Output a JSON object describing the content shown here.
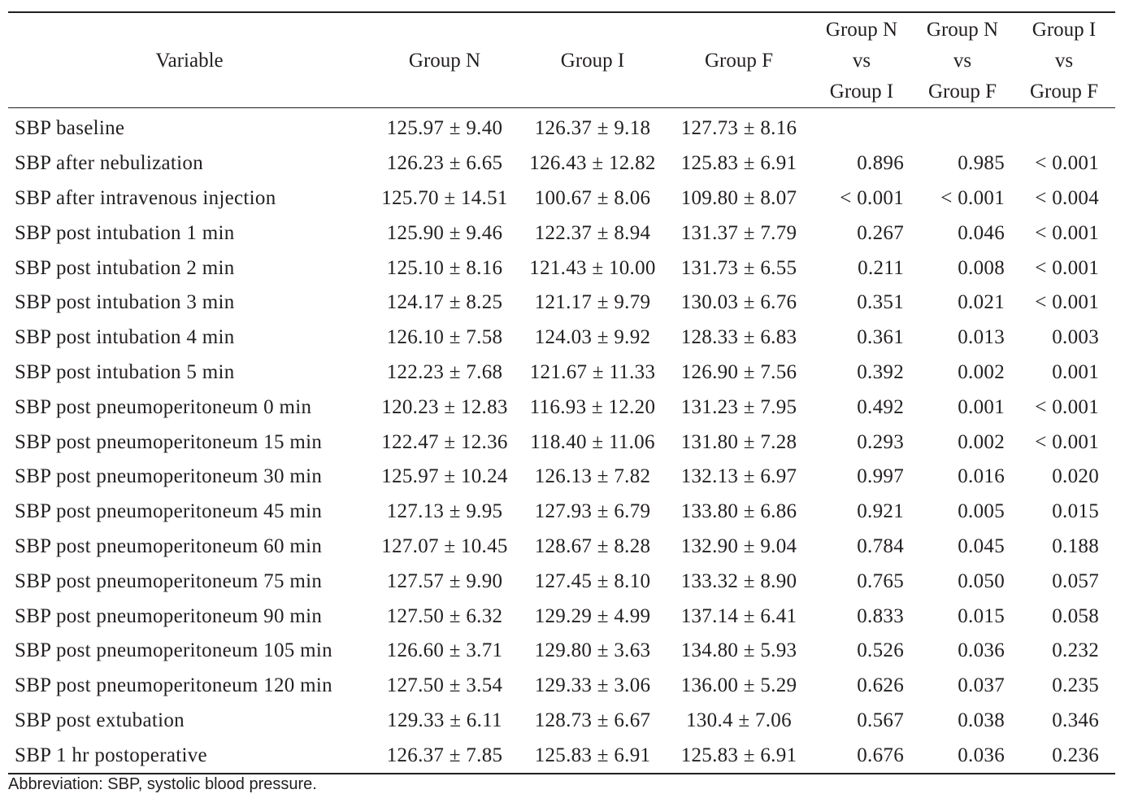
{
  "table": {
    "headers": [
      [
        "Variable"
      ],
      [
        "Group N"
      ],
      [
        "Group I"
      ],
      [
        "Group F"
      ],
      [
        "Group N",
        "vs",
        "Group I"
      ],
      [
        "Group N",
        "vs",
        "Group F"
      ],
      [
        "Group I",
        "vs",
        "Group F"
      ]
    ],
    "rows": [
      [
        "SBP baseline",
        "125.97 ± 9.40",
        "126.37 ± 9.18",
        "127.73 ± 8.16",
        "",
        "",
        ""
      ],
      [
        "SBP after nebulization",
        "126.23 ± 6.65",
        "126.43 ± 12.82",
        "125.83 ± 6.91",
        "0.896",
        "0.985",
        "< 0.001"
      ],
      [
        "SBP after intravenous injection",
        "125.70 ± 14.51",
        "100.67 ± 8.06",
        "109.80 ± 8.07",
        "< 0.001",
        "< 0.001",
        "< 0.004"
      ],
      [
        "SBP post intubation 1 min",
        "125.90 ± 9.46",
        "122.37 ± 8.94",
        "131.37 ± 7.79",
        "0.267",
        "0.046",
        "< 0.001"
      ],
      [
        "SBP post intubation 2 min",
        "125.10 ± 8.16",
        "121.43 ± 10.00",
        "131.73 ± 6.55",
        "0.211",
        "0.008",
        "< 0.001"
      ],
      [
        "SBP post intubation 3 min",
        "124.17 ± 8.25",
        "121.17 ± 9.79",
        "130.03 ± 6.76",
        "0.351",
        "0.021",
        "< 0.001"
      ],
      [
        "SBP post intubation 4 min",
        "126.10 ± 7.58",
        "124.03 ± 9.92",
        "128.33 ± 6.83",
        "0.361",
        "0.013",
        "0.003"
      ],
      [
        "SBP post intubation 5 min",
        "122.23 ± 7.68",
        "121.67 ± 11.33",
        "126.90 ± 7.56",
        "0.392",
        "0.002",
        "0.001"
      ],
      [
        "SBP post pneumoperitoneum 0 min",
        "120.23 ± 12.83",
        "116.93 ± 12.20",
        "131.23 ± 7.95",
        "0.492",
        "0.001",
        "< 0.001"
      ],
      [
        "SBP post pneumoperitoneum 15 min",
        "122.47 ± 12.36",
        "118.40 ± 11.06",
        "131.80 ± 7.28",
        "0.293",
        "0.002",
        "< 0.001"
      ],
      [
        "SBP post pneumoperitoneum 30 min",
        "125.97 ± 10.24",
        "126.13 ± 7.82",
        "132.13 ± 6.97",
        "0.997",
        "0.016",
        "0.020"
      ],
      [
        "SBP post pneumoperitoneum 45 min",
        "127.13 ± 9.95",
        "127.93 ± 6.79",
        "133.80 ± 6.86",
        "0.921",
        "0.005",
        "0.015"
      ],
      [
        "SBP post pneumoperitoneum 60 min",
        "127.07 ± 10.45",
        "128.67 ± 8.28",
        "132.90 ± 9.04",
        "0.784",
        "0.045",
        "0.188"
      ],
      [
        "SBP post pneumoperitoneum 75 min",
        "127.57 ± 9.90",
        "127.45 ± 8.10",
        "133.32 ± 8.90",
        "0.765",
        "0.050",
        "0.057"
      ],
      [
        "SBP post pneumoperitoneum 90 min",
        "127.50 ± 6.32",
        "129.29 ± 4.99",
        "137.14 ± 6.41",
        "0.833",
        "0.015",
        "0.058"
      ],
      [
        "SBP post pneumoperitoneum 105 min",
        "126.60 ± 3.71",
        "129.80 ± 3.63",
        "134.80 ± 5.93",
        "0.526",
        "0.036",
        "0.232"
      ],
      [
        "SBP post pneumoperitoneum 120 min",
        "127.50 ± 3.54",
        "129.33 ± 3.06",
        "136.00 ± 5.29",
        "0.626",
        "0.037",
        "0.235"
      ],
      [
        "SBP post extubation",
        "129.33 ± 6.11",
        "128.73 ± 6.67",
        "130.4 ± 7.06",
        "0.567",
        "0.038",
        "0.346"
      ],
      [
        "SBP 1 hr postoperative",
        "126.37 ± 7.85",
        "125.83 ± 6.91",
        "125.83 ± 6.91",
        "0.676",
        "0.036",
        "0.236"
      ]
    ]
  },
  "footnote": "Abbreviation: SBP, systolic blood pressure."
}
